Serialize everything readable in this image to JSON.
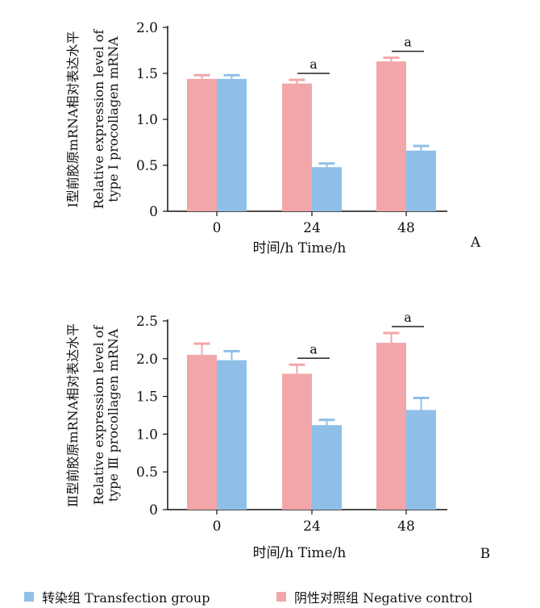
{
  "colors": {
    "transfection": "#8fbfe8",
    "negative": "#f2a6a9",
    "axis": "#111111"
  },
  "chart_data": [
    {
      "type": "bar",
      "panel_label": "A",
      "ylabel_cn": "Ⅰ型前胶原mRNA相对表达水平",
      "ylabel_en_line1": "Relative expression level of",
      "ylabel_en_line2": "type Ⅰ procollagen mRNA",
      "xlabel": "时间/h Time/h",
      "categories": [
        "0",
        "24",
        "48"
      ],
      "ylim": [
        0,
        2.0
      ],
      "yticks": [
        "0",
        "0.5",
        "1.0",
        "1.5",
        "2.0"
      ],
      "series": [
        {
          "name": "阴性对照组 Negative control",
          "values": [
            1.44,
            1.39,
            1.63
          ],
          "errors": [
            0.04,
            0.04,
            0.04
          ]
        },
        {
          "name": "转染组 Transfection group",
          "values": [
            1.44,
            0.48,
            0.66
          ],
          "errors": [
            0.04,
            0.04,
            0.05
          ]
        }
      ],
      "significance": [
        {
          "category": "24",
          "label": "a"
        },
        {
          "category": "48",
          "label": "a"
        }
      ]
    },
    {
      "type": "bar",
      "panel_label": "B",
      "ylabel_cn": "Ⅲ型前胶原mRNA相对表达水平",
      "ylabel_en_line1": "Relative expression level of",
      "ylabel_en_line2": "type Ⅲ procollagen mRNA",
      "xlabel": "时间/h Time/h",
      "categories": [
        "0",
        "24",
        "48"
      ],
      "ylim": [
        0,
        2.5
      ],
      "yticks": [
        "0",
        "0.5",
        "1.0",
        "1.5",
        "2.0",
        "2.5"
      ],
      "series": [
        {
          "name": "阴性对照组 Negative control",
          "values": [
            2.05,
            1.8,
            2.21
          ],
          "errors": [
            0.15,
            0.12,
            0.13
          ]
        },
        {
          "name": "转染组 Transfection group",
          "values": [
            1.98,
            1.12,
            1.32
          ],
          "errors": [
            0.12,
            0.07,
            0.16
          ]
        }
      ],
      "significance": [
        {
          "category": "24",
          "label": "a"
        },
        {
          "category": "48",
          "label": "a"
        }
      ]
    }
  ],
  "legend": {
    "transfection_label": "转染组 Transfection group",
    "negative_label": "阴性对照组 Negative control"
  }
}
